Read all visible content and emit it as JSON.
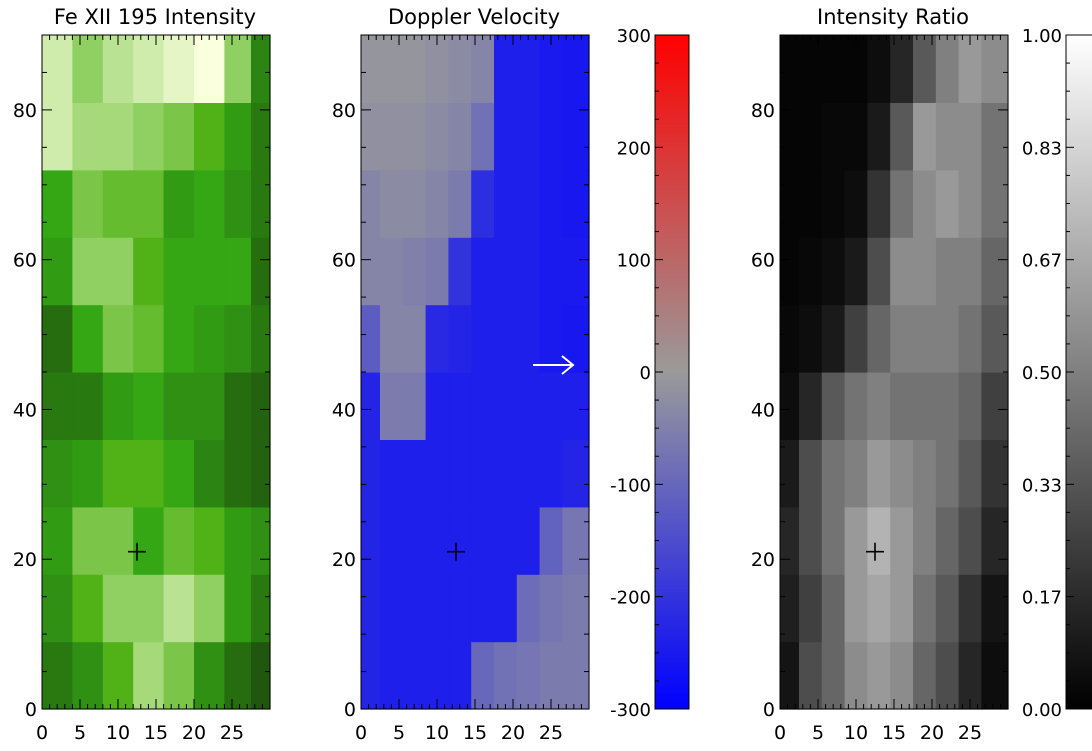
{
  "chart_data": [
    {
      "type": "heatmap",
      "title": "Fe XII 195 Intensity",
      "colormap": "green",
      "xlim": [
        0,
        30
      ],
      "ylim": [
        0,
        90
      ],
      "xticks": [
        0,
        5,
        10,
        15,
        20,
        25
      ],
      "yticks": [
        0,
        20,
        40,
        60,
        80
      ],
      "marker": {
        "symbol": "+",
        "x": 12.5,
        "y": 21
      },
      "columns": [
        {
          "x": 2,
          "values": [
            0.35,
            0.45,
            0.5,
            0.45,
            0.35,
            0.3,
            0.5,
            0.55,
            0.9,
            0.9
          ]
        },
        {
          "x": 6,
          "values": [
            0.45,
            0.6,
            0.7,
            0.5,
            0.35,
            0.55,
            0.75,
            0.7,
            0.8,
            0.75
          ]
        },
        {
          "x": 10,
          "values": [
            0.6,
            0.75,
            0.7,
            0.6,
            0.5,
            0.7,
            0.75,
            0.65,
            0.8,
            0.85
          ]
        },
        {
          "x": 14,
          "values": [
            0.8,
            0.75,
            0.55,
            0.6,
            0.55,
            0.65,
            0.6,
            0.65,
            0.75,
            0.9
          ]
        },
        {
          "x": 18,
          "values": [
            0.7,
            0.85,
            0.65,
            0.55,
            0.45,
            0.55,
            0.55,
            0.5,
            0.7,
            0.95
          ]
        },
        {
          "x": 22,
          "values": [
            0.45,
            0.75,
            0.6,
            0.4,
            0.45,
            0.5,
            0.55,
            0.55,
            0.6,
            1.0
          ]
        },
        {
          "x": 26,
          "values": [
            0.3,
            0.5,
            0.5,
            0.3,
            0.3,
            0.45,
            0.55,
            0.45,
            0.5,
            0.75
          ]
        },
        {
          "x": 29,
          "values": [
            0.2,
            0.35,
            0.45,
            0.25,
            0.25,
            0.35,
            0.3,
            0.35,
            0.35,
            0.4
          ]
        }
      ]
    },
    {
      "type": "heatmap",
      "title": "Doppler Velocity",
      "colormap": "blue-gray-red",
      "xlim": [
        0,
        30
      ],
      "ylim": [
        0,
        90
      ],
      "xticks": [
        0,
        5,
        10,
        15,
        20,
        25
      ],
      "yticks": [
        0,
        20,
        40,
        60,
        80
      ],
      "marker": {
        "symbol": "+",
        "x": 12.5,
        "y": 21
      },
      "arrow": {
        "x_from": 23,
        "x_to": 28,
        "y": 46
      },
      "colorbar": {
        "range": [
          -300,
          300
        ],
        "ticks": [
          300,
          200,
          100,
          0,
          -100,
          -200,
          -300
        ],
        "colors": {
          "low": "#0000ff",
          "mid": "#9a9a9a",
          "high": "#ff0000"
        }
      },
      "columns": [
        {
          "x": 1,
          "values": [
            -230,
            -230,
            -230,
            -230,
            -230,
            -120,
            -40,
            -40,
            -20,
            -10
          ]
        },
        {
          "x": 4,
          "values": [
            -240,
            -240,
            -240,
            -240,
            -60,
            -40,
            -40,
            -30,
            -20,
            -10
          ]
        },
        {
          "x": 7,
          "values": [
            -240,
            -240,
            -240,
            -240,
            -60,
            -40,
            -50,
            -30,
            -20,
            -10
          ]
        },
        {
          "x": 10,
          "values": [
            -240,
            -240,
            -240,
            -240,
            -240,
            -220,
            -60,
            -40,
            -30,
            -20
          ]
        },
        {
          "x": 13,
          "values": [
            -240,
            -240,
            -240,
            -240,
            -240,
            -230,
            -200,
            -60,
            -40,
            -30
          ]
        },
        {
          "x": 16,
          "values": [
            -100,
            -240,
            -240,
            -240,
            -240,
            -240,
            -240,
            -210,
            -80,
            -40
          ]
        },
        {
          "x": 19,
          "values": [
            -80,
            -240,
            -240,
            -240,
            -240,
            -240,
            -240,
            -240,
            -240,
            -240
          ]
        },
        {
          "x": 22,
          "values": [
            -70,
            -90,
            -240,
            -240,
            -240,
            -240,
            -240,
            -240,
            -240,
            -240
          ]
        },
        {
          "x": 25,
          "values": [
            -60,
            -70,
            -110,
            -240,
            -240,
            -250,
            -250,
            -250,
            -250,
            -250
          ]
        },
        {
          "x": 28,
          "values": [
            -60,
            -60,
            -70,
            -230,
            -240,
            -255,
            -250,
            -255,
            -255,
            -255
          ]
        }
      ]
    },
    {
      "type": "heatmap",
      "title": "Intensity Ratio",
      "colormap": "gray",
      "xlim": [
        0,
        30
      ],
      "ylim": [
        0,
        90
      ],
      "xticks": [
        0,
        5,
        10,
        15,
        20,
        25
      ],
      "yticks": [
        0,
        20,
        40,
        60,
        80
      ],
      "marker": {
        "symbol": "+",
        "x": 12.5,
        "y": 21
      },
      "colorbar": {
        "range": [
          0,
          1
        ],
        "ticks": [
          "1.00",
          "0.83",
          "0.67",
          "0.50",
          "0.33",
          "0.17",
          "0.00"
        ],
        "colors": {
          "low": "#000000",
          "high": "#ffffff"
        }
      },
      "columns": [
        {
          "x": 1,
          "values": [
            0.08,
            0.12,
            0.15,
            0.1,
            0.05,
            0.03,
            0.02,
            0.02,
            0.02,
            0.02
          ]
        },
        {
          "x": 4,
          "values": [
            0.3,
            0.25,
            0.3,
            0.3,
            0.15,
            0.05,
            0.03,
            0.02,
            0.02,
            0.02
          ]
        },
        {
          "x": 7,
          "values": [
            0.4,
            0.4,
            0.45,
            0.45,
            0.35,
            0.1,
            0.05,
            0.03,
            0.03,
            0.02
          ]
        },
        {
          "x": 10,
          "values": [
            0.55,
            0.6,
            0.6,
            0.5,
            0.45,
            0.25,
            0.1,
            0.05,
            0.03,
            0.02
          ]
        },
        {
          "x": 13,
          "values": [
            0.6,
            0.65,
            0.7,
            0.6,
            0.5,
            0.4,
            0.3,
            0.2,
            0.1,
            0.05
          ]
        },
        {
          "x": 16,
          "values": [
            0.55,
            0.6,
            0.6,
            0.55,
            0.45,
            0.5,
            0.55,
            0.45,
            0.35,
            0.15
          ]
        },
        {
          "x": 19,
          "values": [
            0.4,
            0.45,
            0.5,
            0.5,
            0.45,
            0.5,
            0.55,
            0.55,
            0.6,
            0.35
          ]
        },
        {
          "x": 22,
          "values": [
            0.3,
            0.35,
            0.4,
            0.45,
            0.45,
            0.5,
            0.5,
            0.6,
            0.55,
            0.5
          ]
        },
        {
          "x": 25,
          "values": [
            0.15,
            0.2,
            0.3,
            0.35,
            0.4,
            0.45,
            0.5,
            0.55,
            0.55,
            0.6
          ]
        },
        {
          "x": 28,
          "values": [
            0.05,
            0.08,
            0.15,
            0.2,
            0.25,
            0.35,
            0.4,
            0.45,
            0.45,
            0.55
          ]
        }
      ]
    }
  ]
}
